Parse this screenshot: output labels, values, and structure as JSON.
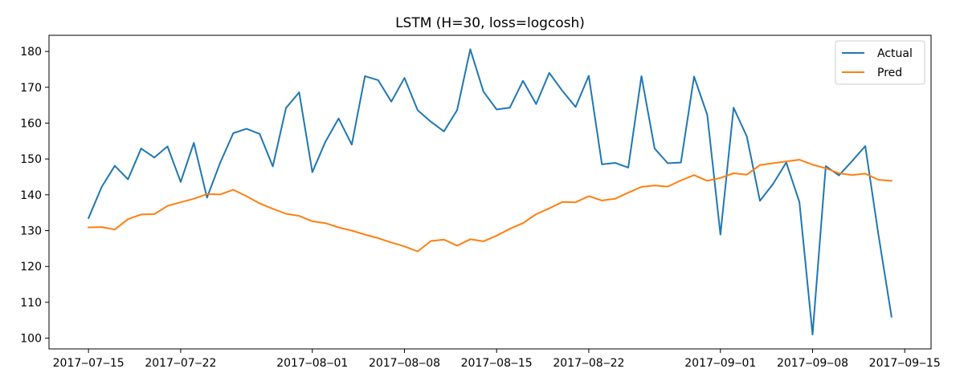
{
  "chart_data": {
    "type": "line",
    "title": "LSTM (H=30, loss=logcosh)",
    "xlabel": "",
    "ylabel": "",
    "x": [
      "2017-07-15",
      "2017-07-16",
      "2017-07-17",
      "2017-07-18",
      "2017-07-19",
      "2017-07-20",
      "2017-07-21",
      "2017-07-22",
      "2017-07-23",
      "2017-07-24",
      "2017-07-25",
      "2017-07-26",
      "2017-07-27",
      "2017-07-28",
      "2017-07-29",
      "2017-07-30",
      "2017-07-31",
      "2017-08-01",
      "2017-08-02",
      "2017-08-03",
      "2017-08-04",
      "2017-08-05",
      "2017-08-06",
      "2017-08-07",
      "2017-08-08",
      "2017-08-09",
      "2017-08-10",
      "2017-08-11",
      "2017-08-12",
      "2017-08-13",
      "2017-08-14",
      "2017-08-15",
      "2017-08-16",
      "2017-08-17",
      "2017-08-18",
      "2017-08-19",
      "2017-08-20",
      "2017-08-21",
      "2017-08-22",
      "2017-08-23",
      "2017-08-24",
      "2017-08-25",
      "2017-08-26",
      "2017-08-27",
      "2017-08-28",
      "2017-08-29",
      "2017-08-30",
      "2017-08-31",
      "2017-09-01",
      "2017-09-02",
      "2017-09-03",
      "2017-09-04",
      "2017-09-05",
      "2017-09-06",
      "2017-09-07",
      "2017-09-08",
      "2017-09-09",
      "2017-09-10",
      "2017-09-11",
      "2017-09-12",
      "2017-09-13",
      "2017-09-14"
    ],
    "series": [
      {
        "name": "Actual",
        "color": "#1f77b4",
        "values": [
          133.5,
          142.2,
          148.1,
          144.3,
          152.9,
          150.4,
          153.5,
          143.6,
          154.5,
          139.2,
          148.9,
          157.2,
          158.4,
          157.0,
          147.9,
          164.2,
          168.6,
          146.3,
          154.8,
          161.3,
          154.0,
          173.1,
          172.0,
          166.0,
          172.6,
          163.6,
          160.4,
          157.7,
          163.6,
          180.6,
          168.8,
          163.8,
          164.3,
          171.8,
          165.3,
          174.0,
          169.0,
          164.5,
          173.2,
          148.5,
          148.9,
          147.6,
          173.1,
          152.9,
          148.8,
          149.0,
          173.0,
          162.3,
          128.9,
          164.3,
          156.3,
          138.3,
          143.0,
          149.0,
          138.0,
          101.0,
          148.0,
          145.4,
          149.4,
          153.6,
          129.0,
          106.0
        ]
      },
      {
        "name": "Pred",
        "color": "#ff7f0e",
        "values": [
          130.9,
          131.0,
          130.3,
          133.2,
          134.5,
          134.6,
          136.9,
          137.9,
          138.9,
          140.2,
          140.1,
          141.4,
          139.6,
          137.6,
          136.1,
          134.7,
          134.1,
          132.6,
          132.1,
          130.9,
          130.0,
          128.9,
          127.9,
          126.7,
          125.6,
          124.2,
          127.1,
          127.5,
          125.8,
          127.6,
          127.0,
          128.6,
          130.5,
          132.1,
          134.6,
          136.2,
          138.0,
          137.9,
          139.6,
          138.4,
          138.9,
          140.6,
          142.2,
          142.6,
          142.3,
          144.0,
          145.5,
          143.9,
          144.7,
          146.0,
          145.6,
          148.3,
          148.8,
          149.3,
          149.8,
          148.4,
          147.4,
          146.0,
          145.5,
          145.9,
          144.2,
          143.9
        ]
      }
    ],
    "x_ticks": [
      "2017-07-15",
      "2017-07-22",
      "2017-08-01",
      "2017-08-08",
      "2017-08-15",
      "2017-08-22",
      "2017-09-01",
      "2017-09-08",
      "2017-09-15"
    ],
    "y_ticks": [
      100,
      110,
      120,
      130,
      140,
      150,
      160,
      170,
      180
    ],
    "xlim": [
      "2017-07-12",
      "2017-09-17"
    ],
    "ylim": [
      97,
      184.5
    ],
    "grid": false,
    "legend_position": "top-right"
  }
}
